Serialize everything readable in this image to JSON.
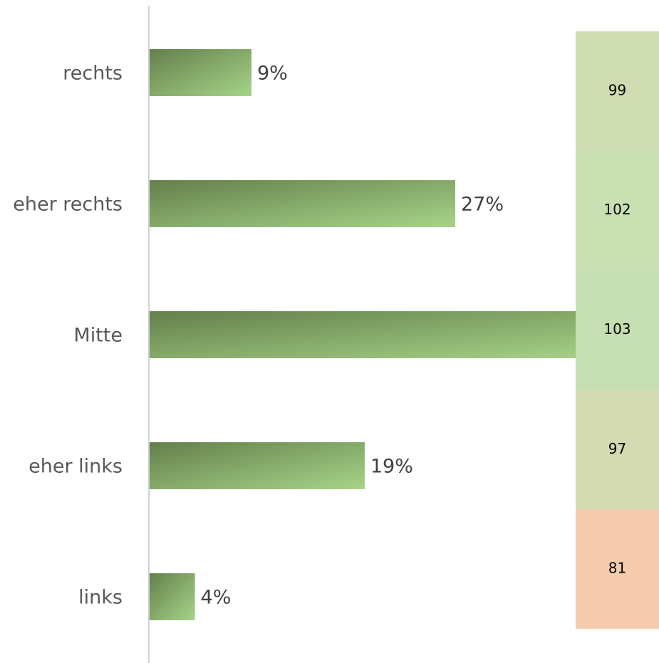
{
  "chart_data": {
    "type": "bar",
    "orientation": "horizontal",
    "categories": [
      "rechts",
      "eher rechts",
      "Mitte",
      "eher links",
      "links"
    ],
    "values": [
      9,
      27,
      41,
      19,
      4
    ],
    "value_labels": [
      "9%",
      "27%",
      null,
      "19%",
      "4%"
    ],
    "color": [
      "#647f4c",
      "#a6d488"
    ],
    "xlim": [
      0,
      45
    ],
    "index": {
      "values": [
        99,
        102,
        103,
        97,
        81
      ],
      "colors": [
        "#d0dcb2",
        "#c9e0b3",
        "#c6dfb2",
        "#d4dab2",
        "#f7cbae"
      ]
    }
  }
}
